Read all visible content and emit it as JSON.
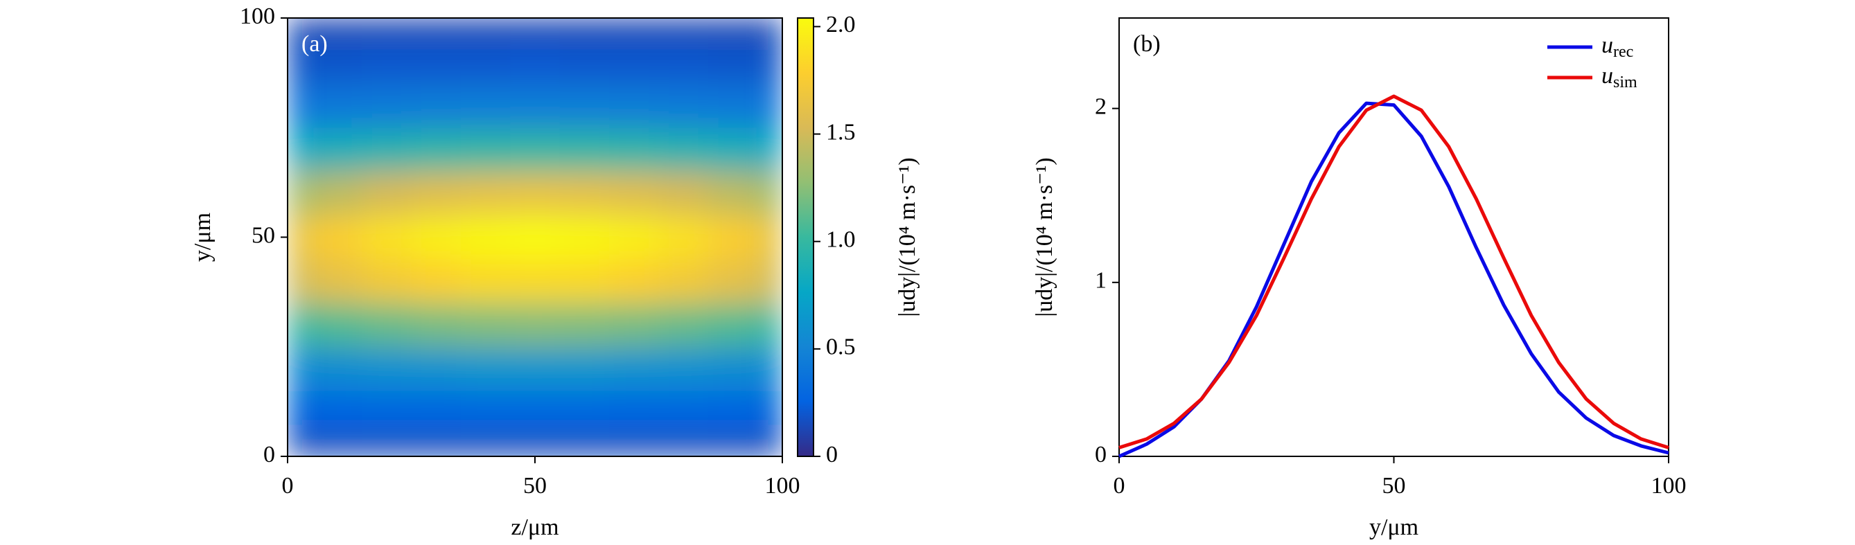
{
  "chart_data": [
    {
      "type": "heatmap",
      "label": "(a)",
      "xlabel": "z/μm",
      "ylabel": "y/μm",
      "xlim": [
        0,
        100
      ],
      "ylim": [
        0,
        100
      ],
      "xticks": [
        0,
        50,
        100
      ],
      "yticks": [
        0,
        50,
        100
      ],
      "x": [
        0,
        10,
        20,
        30,
        40,
        50,
        60,
        70,
        80,
        90,
        100
      ],
      "y": [
        0,
        10,
        20,
        30,
        40,
        50,
        60,
        70,
        80,
        90,
        100
      ],
      "values": [
        [
          0.13,
          0.14,
          0.14,
          0.14,
          0.14,
          0.14,
          0.14,
          0.14,
          0.14,
          0.14,
          0.13
        ],
        [
          0.24,
          0.26,
          0.27,
          0.27,
          0.28,
          0.28,
          0.28,
          0.27,
          0.27,
          0.26,
          0.24
        ],
        [
          0.53,
          0.56,
          0.59,
          0.61,
          0.63,
          0.63,
          0.63,
          0.61,
          0.59,
          0.56,
          0.53
        ],
        [
          1.01,
          1.09,
          1.15,
          1.2,
          1.23,
          1.24,
          1.23,
          1.2,
          1.15,
          1.09,
          1.01
        ],
        [
          1.5,
          1.62,
          1.72,
          1.79,
          1.84,
          1.85,
          1.84,
          1.79,
          1.72,
          1.62,
          1.5
        ],
        [
          1.65,
          1.78,
          1.89,
          1.97,
          2.02,
          2.04,
          2.02,
          1.97,
          1.89,
          1.78,
          1.65
        ],
        [
          1.33,
          1.43,
          1.52,
          1.58,
          1.62,
          1.64,
          1.62,
          1.58,
          1.52,
          1.43,
          1.33
        ],
        [
          0.8,
          0.86,
          0.91,
          0.95,
          0.97,
          0.98,
          0.97,
          0.95,
          0.91,
          0.86,
          0.8
        ],
        [
          0.39,
          0.41,
          0.43,
          0.45,
          0.46,
          0.46,
          0.46,
          0.45,
          0.43,
          0.41,
          0.39
        ],
        [
          0.18,
          0.19,
          0.2,
          0.2,
          0.2,
          0.21,
          0.2,
          0.2,
          0.2,
          0.19,
          0.18
        ],
        [
          0.12,
          0.12,
          0.12,
          0.12,
          0.12,
          0.12,
          0.12,
          0.12,
          0.12,
          0.12,
          0.12
        ]
      ],
      "colormap": [
        "#352a87",
        "#0363e1",
        "#1485d4",
        "#06a7c6",
        "#38b99e",
        "#92bf73",
        "#d9ba56",
        "#fcce2e",
        "#f9fb0e"
      ],
      "clim": [
        0,
        2.04
      ],
      "cticks": [
        0,
        0.5,
        {
          "value": 1,
          "label": "1.0"
        },
        1.5,
        {
          "value": 2,
          "label": "2.0"
        }
      ],
      "clabel": "|udy|/(10⁴ m·s⁻¹)"
    },
    {
      "type": "line",
      "label": "(b)",
      "xlabel": "y/μm",
      "ylabel": "|udy|/(10⁴ m·s⁻¹)",
      "xlim": [
        0,
        100
      ],
      "ylim": [
        0,
        2.52
      ],
      "xticks": [
        0,
        50,
        100
      ],
      "yticks": [
        0,
        1,
        2
      ],
      "legend": "upper right",
      "x": [
        0,
        5,
        10,
        15,
        20,
        25,
        30,
        35,
        40,
        45,
        50,
        55,
        60,
        65,
        70,
        75,
        80,
        85,
        90,
        95,
        100
      ],
      "series": [
        {
          "name": "urec",
          "color": "#0a0ae6",
          "values": [
            0.0,
            0.07,
            0.17,
            0.33,
            0.55,
            0.86,
            1.22,
            1.58,
            1.86,
            2.03,
            2.02,
            1.84,
            1.55,
            1.2,
            0.87,
            0.59,
            0.37,
            0.22,
            0.12,
            0.06,
            0.02
          ]
        },
        {
          "name": "usim",
          "color": "#ea0a0a",
          "values": [
            0.05,
            0.1,
            0.19,
            0.33,
            0.54,
            0.81,
            1.14,
            1.48,
            1.78,
            1.99,
            2.07,
            1.99,
            1.78,
            1.48,
            1.14,
            0.81,
            0.54,
            0.33,
            0.19,
            0.1,
            0.05
          ]
        }
      ]
    }
  ]
}
